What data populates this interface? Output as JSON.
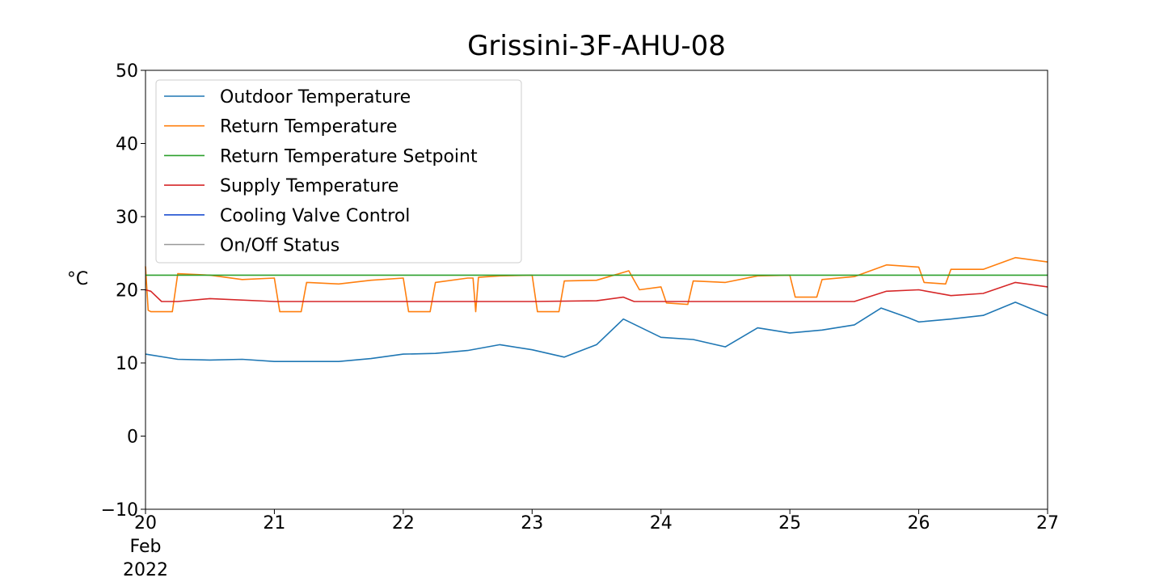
{
  "chart_data": {
    "type": "line",
    "title": "Grissini-3F-AHU-08",
    "xlabel": "",
    "ylabel": "°C",
    "xlim": [
      "2022-02-20",
      "2022-02-27"
    ],
    "ylim": [
      -10,
      50
    ],
    "x_ticks": [
      "2022-02-20",
      "2022-02-21",
      "2022-02-22",
      "2022-02-23",
      "2022-02-24",
      "2022-02-25",
      "2022-02-26",
      "2022-02-27"
    ],
    "x_tick_labels": [
      "20",
      "21",
      "22",
      "23",
      "24",
      "25",
      "26",
      "27"
    ],
    "x_tick_sublabels": [
      "Feb",
      "2022"
    ],
    "y_ticks": [
      -10,
      0,
      10,
      20,
      30,
      40,
      50
    ],
    "y_tick_labels": [
      "−10",
      "0",
      "10",
      "20",
      "30",
      "40",
      "50"
    ],
    "grid": false,
    "legend": {
      "position": "top-left"
    },
    "series": [
      {
        "name": "Outdoor Temperature",
        "color": "#1f77b4",
        "x": [
          "2022-02-20T00:00",
          "2022-02-20T06:00",
          "2022-02-20T12:00",
          "2022-02-20T18:00",
          "2022-02-21T00:00",
          "2022-02-21T12:00",
          "2022-02-21T18:00",
          "2022-02-22T00:00",
          "2022-02-22T06:00",
          "2022-02-22T12:00",
          "2022-02-22T18:00",
          "2022-02-23T00:00",
          "2022-02-23T06:00",
          "2022-02-23T12:00",
          "2022-02-23T17:00",
          "2022-02-24T00:00",
          "2022-02-24T06:00",
          "2022-02-24T12:00",
          "2022-02-24T18:00",
          "2022-02-25T00:00",
          "2022-02-25T06:00",
          "2022-02-25T12:00",
          "2022-02-25T17:00",
          "2022-02-25T22:00",
          "2022-02-26T00:00",
          "2022-02-26T06:00",
          "2022-02-26T12:00",
          "2022-02-26T18:00",
          "2022-02-26T23:59"
        ],
        "y": [
          11.2,
          10.5,
          10.4,
          10.5,
          10.2,
          10.2,
          10.6,
          11.2,
          11.3,
          11.7,
          12.5,
          11.8,
          10.8,
          12.5,
          16.0,
          13.5,
          13.2,
          12.2,
          14.8,
          14.1,
          14.5,
          15.2,
          17.5,
          16.2,
          15.6,
          16.0,
          16.5,
          18.3,
          16.5
        ]
      },
      {
        "name": "Return Temperature",
        "color": "#ff7f0e",
        "x": [
          "2022-02-20T00:00",
          "2022-02-20T00:30",
          "2022-02-20T01:00",
          "2022-02-20T05:00",
          "2022-02-20T06:00",
          "2022-02-20T12:00",
          "2022-02-20T18:00",
          "2022-02-21T00:00",
          "2022-02-21T01:00",
          "2022-02-21T05:00",
          "2022-02-21T06:00",
          "2022-02-21T12:00",
          "2022-02-21T18:00",
          "2022-02-22T00:00",
          "2022-02-22T01:00",
          "2022-02-22T05:00",
          "2022-02-22T06:00",
          "2022-02-22T12:00",
          "2022-02-22T13:00",
          "2022-02-22T13:30",
          "2022-02-22T14:00",
          "2022-02-22T18:00",
          "2022-02-23T00:00",
          "2022-02-23T01:00",
          "2022-02-23T05:00",
          "2022-02-23T06:00",
          "2022-02-23T12:00",
          "2022-02-23T18:00",
          "2022-02-23T20:00",
          "2022-02-24T00:00",
          "2022-02-24T01:00",
          "2022-02-24T05:00",
          "2022-02-24T06:00",
          "2022-02-24T12:00",
          "2022-02-24T18:00",
          "2022-02-25T00:00",
          "2022-02-25T01:00",
          "2022-02-25T05:00",
          "2022-02-25T06:00",
          "2022-02-25T12:00",
          "2022-02-25T18:00",
          "2022-02-26T00:00",
          "2022-02-26T01:00",
          "2022-02-26T05:00",
          "2022-02-26T06:00",
          "2022-02-26T12:00",
          "2022-02-26T18:00",
          "2022-02-26T23:59"
        ],
        "y": [
          23.2,
          17.2,
          17.0,
          17.0,
          22.2,
          22.0,
          21.4,
          21.6,
          17.0,
          17.0,
          21.0,
          20.8,
          21.3,
          21.6,
          17.0,
          17.0,
          21.0,
          21.6,
          21.6,
          17.0,
          21.7,
          21.9,
          22.0,
          17.0,
          17.0,
          21.2,
          21.3,
          22.6,
          20.0,
          20.4,
          18.2,
          18.0,
          21.2,
          21.0,
          21.9,
          22.0,
          19.0,
          19.0,
          21.4,
          21.8,
          23.4,
          23.1,
          21.0,
          20.8,
          22.8,
          22.8,
          24.4,
          23.8
        ]
      },
      {
        "name": "Return Temperature Setpoint",
        "color": "#2ca02c",
        "x": [
          "2022-02-20T00:00",
          "2022-02-26T23:59"
        ],
        "y": [
          22,
          22
        ]
      },
      {
        "name": "Supply Temperature",
        "color": "#d62728",
        "x": [
          "2022-02-20T00:00",
          "2022-02-20T01:00",
          "2022-02-20T03:00",
          "2022-02-20T06:00",
          "2022-02-20T12:00",
          "2022-02-21T00:00",
          "2022-02-22T00:00",
          "2022-02-23T00:00",
          "2022-02-23T12:00",
          "2022-02-23T17:00",
          "2022-02-23T19:00",
          "2022-02-24T00:00",
          "2022-02-25T00:00",
          "2022-02-25T12:00",
          "2022-02-25T18:00",
          "2022-02-26T00:00",
          "2022-02-26T06:00",
          "2022-02-26T12:00",
          "2022-02-26T18:00",
          "2022-02-26T23:59"
        ],
        "y": [
          20.0,
          19.8,
          18.4,
          18.4,
          18.8,
          18.4,
          18.4,
          18.4,
          18.5,
          19.0,
          18.4,
          18.4,
          18.4,
          18.4,
          19.8,
          20.0,
          19.2,
          19.5,
          21.0,
          20.4
        ]
      },
      {
        "name": "Cooling Valve Control",
        "color": "#1f50d0",
        "x": [],
        "y": []
      },
      {
        "name": "On/Off Status",
        "color": "#999999",
        "x": [],
        "y": []
      }
    ]
  }
}
